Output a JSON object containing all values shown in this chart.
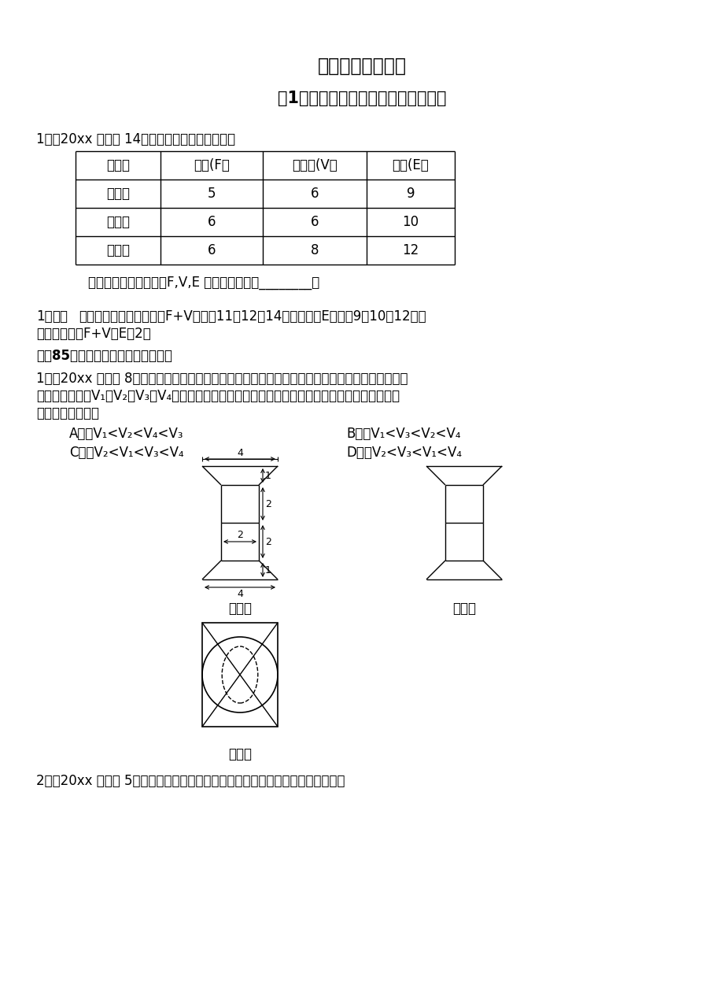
{
  "title1": "第八章　立体几何",
  "title2": "第1节　空间几何体及其表面积和体积",
  "q1_intro": "1．（20xx 陕西理 14）观察分析下表中的数据：",
  "table_headers": [
    "多面体",
    "面数(F）",
    "顶点数(V）",
    "棱数(E）"
  ],
  "table_rows": [
    [
      "三棱锥",
      "5",
      "6",
      "9"
    ],
    [
      "五棱锥",
      "6",
      "6",
      "10"
    ],
    [
      "立方体",
      "6",
      "8",
      "12"
    ]
  ],
  "q1_guess": "猜想一般凸多面体中，F,V,E 所满足的等式是________．",
  "sol_prefix": "1．",
  "sol_bold": "解析",
  "sol_text": "　观察表中数据，并计算F+V分别为11，12，14，又其对应E分别为9，10，12，容",
  "sol_text2": "易观察并猜想F+V－E＝2．",
  "section85": "题型85　空间几何体的表面积与体积",
  "q2_line1": "1．（20xx 湖北理 8）一个几何体的三视图如图所示，该几何体从上到下由四个简单几何体组成，其",
  "q2_line2": "　体积分别记为V₁，V₂，V₃，V₄，上面两个几何体均为旋转体，下面两个简单几何体均为多面体，",
  "q2_line3": "　则有：（　）．",
  "optA": "A．　V₁<V₂<V₄<V₃",
  "optB": "B．　V₁<V₃<V₂<V₄",
  "optC": "C．　V₂<V₁<V₃<V₄",
  "optD": "D．　V₂<V₃<V₁<V₄",
  "label_front": "正视图",
  "label_side": "侧视图",
  "label_top": "俧视图",
  "q3_line": "2．（20xx 重庆理 5）某几何体的三视图如图所示，则该几何体的体积为（　）．",
  "bg_color": "#ffffff"
}
